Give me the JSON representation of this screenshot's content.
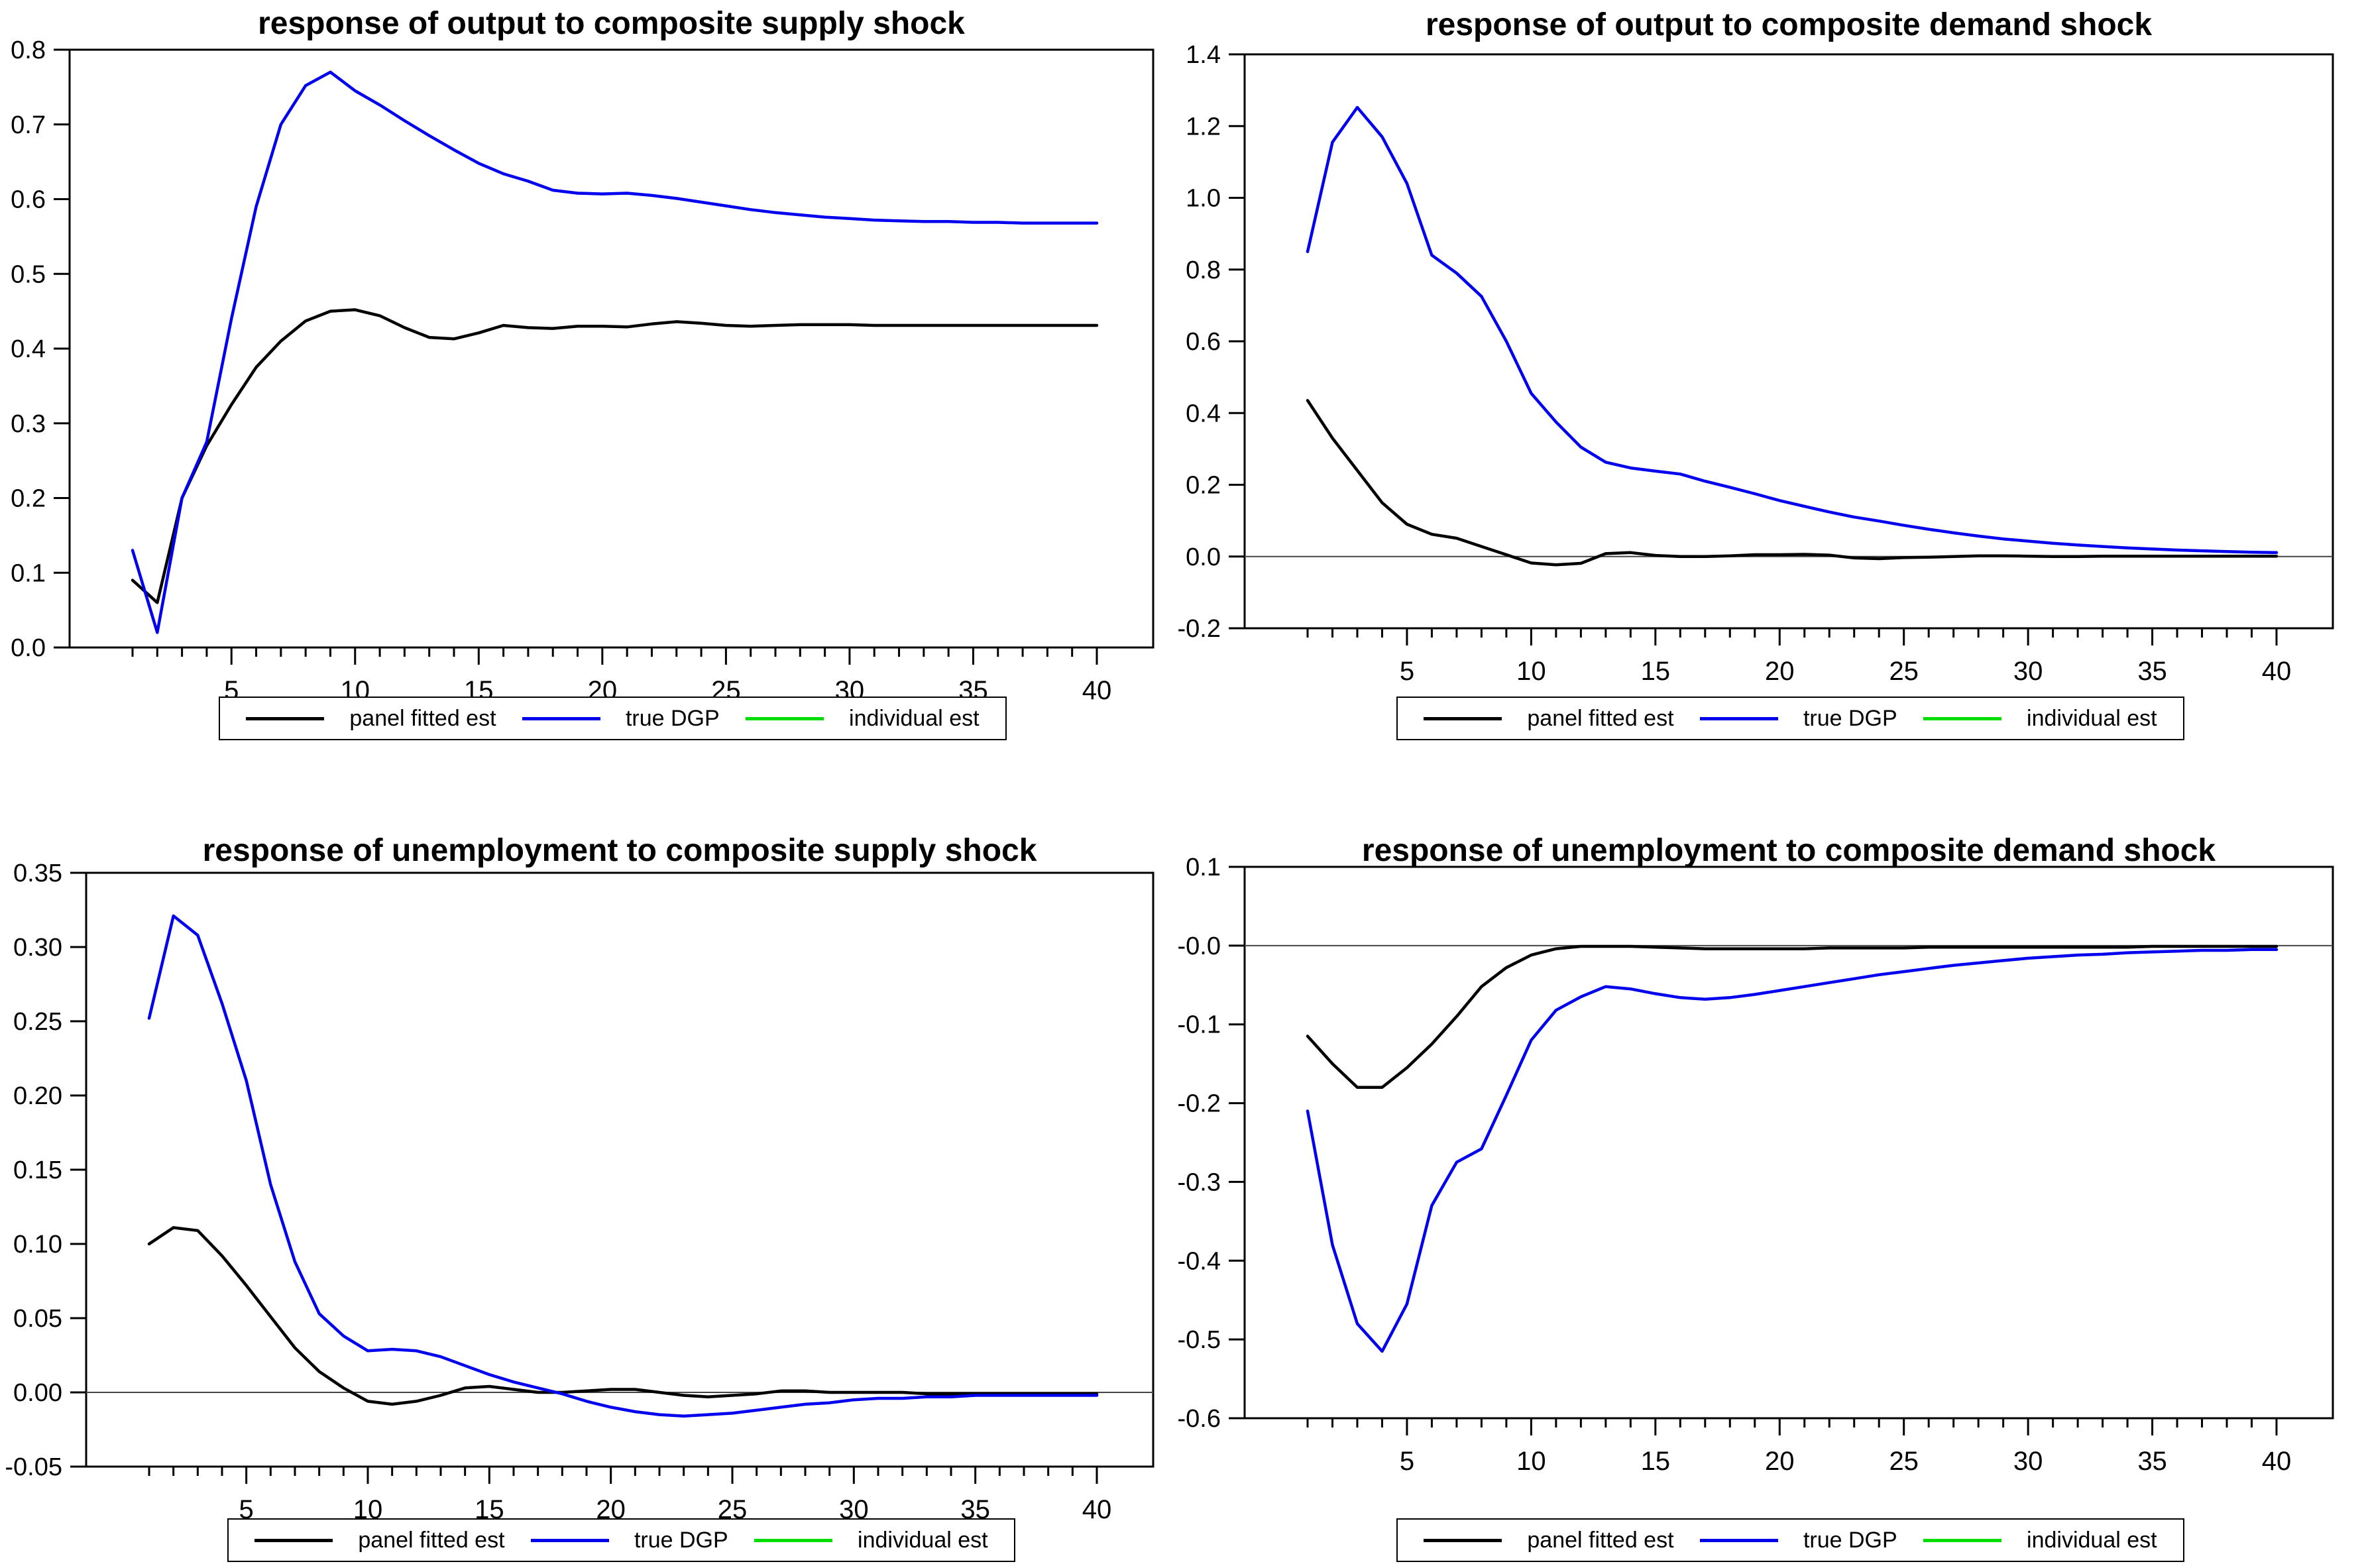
{
  "colors": {
    "panel_fitted_est": "#000000",
    "true_dgp": "#0000EE",
    "individual_est": "#00DD00",
    "frame": "#000000",
    "zero_line": "#444444",
    "background": "#FFFFFF"
  },
  "legend": {
    "items": [
      {
        "label": "panel fitted est",
        "color": "#000000"
      },
      {
        "label": "true DGP",
        "color": "#0000EE"
      },
      {
        "label": "individual est",
        "color": "#00DD00"
      }
    ]
  },
  "chart_data": [
    {
      "type": "line",
      "title": "response of output to composite supply shock",
      "xlabel": "",
      "ylabel": "",
      "x_range": [
        1,
        40
      ],
      "x_ticks": [
        5,
        10,
        15,
        20,
        25,
        30,
        35,
        40
      ],
      "x_minor_tick_every": 1,
      "ylim": [
        0.0,
        0.8
      ],
      "ytick_values": [
        0.8,
        0.7,
        0.6,
        0.5,
        0.4,
        0.3,
        0.2,
        0.1,
        0.0
      ],
      "ytick_labels": [
        "0.8",
        "0.7",
        "0.6",
        "0.5",
        "0.4",
        "0.3",
        "0.2",
        "0.1",
        "0.0"
      ],
      "grid": false,
      "zero_line": false,
      "legend_position": "bottom",
      "series": [
        {
          "name": "panel fitted est",
          "color": "#000000",
          "values": [
            0.09,
            0.06,
            0.2,
            0.27,
            0.325,
            0.375,
            0.41,
            0.437,
            0.45,
            0.452,
            0.444,
            0.428,
            0.415,
            0.413,
            0.421,
            0.431,
            0.428,
            0.427,
            0.43,
            0.43,
            0.429,
            0.433,
            0.436,
            0.434,
            0.431,
            0.43,
            0.431,
            0.432,
            0.432,
            0.432,
            0.431,
            0.431,
            0.431,
            0.431,
            0.431,
            0.431,
            0.431,
            0.431,
            0.431,
            0.431
          ]
        },
        {
          "name": "true DGP",
          "color": "#0000EE",
          "values": [
            0.13,
            0.02,
            0.2,
            0.275,
            0.44,
            0.59,
            0.7,
            0.752,
            0.77,
            0.745,
            0.726,
            0.705,
            0.685,
            0.666,
            0.648,
            0.634,
            0.624,
            0.612,
            0.608,
            0.607,
            0.608,
            0.605,
            0.601,
            0.596,
            0.591,
            0.586,
            0.582,
            0.579,
            0.576,
            0.574,
            0.572,
            0.571,
            0.57,
            0.57,
            0.569,
            0.569,
            0.568,
            0.568,
            0.568,
            0.568
          ]
        }
      ]
    },
    {
      "type": "line",
      "title": "response of output to composite demand shock",
      "xlabel": "",
      "ylabel": "",
      "x_range": [
        1,
        40
      ],
      "x_ticks": [
        5,
        10,
        15,
        20,
        25,
        30,
        35,
        40
      ],
      "x_minor_tick_every": 1,
      "ylim": [
        -0.2,
        1.4
      ],
      "ytick_values": [
        1.4,
        1.2,
        1.0,
        0.8,
        0.6,
        0.4,
        0.2,
        0.0,
        -0.2
      ],
      "ytick_labels": [
        "1.4",
        "1.2",
        "1.0",
        "0.8",
        "0.6",
        "0.4",
        "0.2",
        "0.0",
        "-0.2"
      ],
      "grid": false,
      "zero_line": true,
      "legend_position": "bottom",
      "series": [
        {
          "name": "panel fitted est",
          "color": "#000000",
          "values": [
            0.435,
            0.33,
            0.24,
            0.15,
            0.09,
            0.062,
            0.051,
            0.028,
            0.005,
            -0.018,
            -0.023,
            -0.019,
            0.008,
            0.011,
            0.003,
            0.0,
            0.0,
            0.002,
            0.005,
            0.005,
            0.006,
            0.004,
            -0.004,
            -0.006,
            -0.003,
            -0.002,
            0.0,
            0.002,
            0.002,
            0.001,
            0.0,
            0.0,
            0.001,
            0.001,
            0.001,
            0.001,
            0.001,
            0.001,
            0.001,
            0.001
          ]
        },
        {
          "name": "true DGP",
          "color": "#0000EE",
          "values": [
            0.85,
            1.155,
            1.252,
            1.17,
            1.04,
            0.84,
            0.79,
            0.725,
            0.6,
            0.455,
            0.375,
            0.305,
            0.263,
            0.247,
            0.238,
            0.23,
            0.21,
            0.193,
            0.175,
            0.156,
            0.14,
            0.124,
            0.11,
            0.099,
            0.087,
            0.076,
            0.066,
            0.057,
            0.049,
            0.043,
            0.037,
            0.032,
            0.028,
            0.024,
            0.021,
            0.018,
            0.016,
            0.014,
            0.012,
            0.011
          ]
        }
      ]
    },
    {
      "type": "line",
      "title": "response of unemployment to composite supply shock",
      "xlabel": "",
      "ylabel": "",
      "x_range": [
        1,
        40
      ],
      "x_ticks": [
        5,
        10,
        15,
        20,
        25,
        30,
        35,
        40
      ],
      "x_minor_tick_every": 1,
      "ylim": [
        -0.05,
        0.35
      ],
      "ytick_values": [
        0.35,
        0.3,
        0.25,
        0.2,
        0.15,
        0.1,
        0.05,
        0.0,
        -0.05
      ],
      "ytick_labels": [
        "0.35",
        "0.30",
        "0.25",
        "0.20",
        "0.15",
        "0.10",
        "0.05",
        "0.00",
        "-0.05"
      ],
      "grid": false,
      "zero_line": true,
      "legend_position": "bottom",
      "series": [
        {
          "name": "panel fitted est",
          "color": "#000000",
          "values": [
            0.1,
            0.111,
            0.109,
            0.092,
            0.072,
            0.051,
            0.03,
            0.014,
            0.003,
            -0.006,
            -0.008,
            -0.006,
            -0.002,
            0.003,
            0.004,
            0.002,
            0.0,
            0.0,
            0.001,
            0.002,
            0.002,
            0.0,
            -0.002,
            -0.003,
            -0.002,
            -0.001,
            0.001,
            0.001,
            0.0,
            0.0,
            0.0,
            0.0,
            -0.001,
            -0.001,
            -0.001,
            -0.001,
            -0.001,
            -0.001,
            -0.001,
            -0.001
          ]
        },
        {
          "name": "true DGP",
          "color": "#0000EE",
          "values": [
            0.252,
            0.321,
            0.308,
            0.262,
            0.21,
            0.14,
            0.088,
            0.053,
            0.038,
            0.028,
            0.029,
            0.028,
            0.024,
            0.018,
            0.012,
            0.007,
            0.003,
            -0.001,
            -0.006,
            -0.01,
            -0.013,
            -0.015,
            -0.016,
            -0.015,
            -0.014,
            -0.012,
            -0.01,
            -0.008,
            -0.007,
            -0.005,
            -0.004,
            -0.004,
            -0.003,
            -0.003,
            -0.002,
            -0.002,
            -0.002,
            -0.002,
            -0.002,
            -0.002
          ]
        }
      ]
    },
    {
      "type": "line",
      "title": "response of unemployment to composite demand shock",
      "xlabel": "",
      "ylabel": "",
      "x_range": [
        1,
        40
      ],
      "x_ticks": [
        5,
        10,
        15,
        20,
        25,
        30,
        35,
        40
      ],
      "x_minor_tick_every": 1,
      "ylim": [
        -0.6,
        0.1
      ],
      "ytick_values": [
        0.1,
        0.0,
        -0.1,
        -0.2,
        -0.3,
        -0.4,
        -0.5,
        -0.6
      ],
      "ytick_labels": [
        "0.1",
        "-0.0",
        "-0.1",
        "-0.2",
        "-0.3",
        "-0.4",
        "-0.5",
        "-0.6"
      ],
      "grid": false,
      "zero_line": true,
      "legend_position": "bottom",
      "series": [
        {
          "name": "panel fitted est",
          "color": "#000000",
          "values": [
            -0.115,
            -0.15,
            -0.18,
            -0.18,
            -0.155,
            -0.125,
            -0.09,
            -0.052,
            -0.028,
            -0.012,
            -0.004,
            -0.001,
            -0.001,
            -0.001,
            -0.002,
            -0.003,
            -0.004,
            -0.004,
            -0.004,
            -0.004,
            -0.004,
            -0.003,
            -0.003,
            -0.003,
            -0.003,
            -0.002,
            -0.002,
            -0.002,
            -0.002,
            -0.002,
            -0.002,
            -0.002,
            -0.002,
            -0.002,
            -0.001,
            -0.001,
            -0.001,
            -0.001,
            -0.001,
            -0.001
          ]
        },
        {
          "name": "true DGP",
          "color": "#0000EE",
          "values": [
            -0.21,
            -0.38,
            -0.48,
            -0.515,
            -0.455,
            -0.33,
            -0.275,
            -0.258,
            -0.19,
            -0.12,
            -0.082,
            -0.065,
            -0.052,
            -0.055,
            -0.061,
            -0.066,
            -0.068,
            -0.066,
            -0.062,
            -0.057,
            -0.052,
            -0.047,
            -0.042,
            -0.037,
            -0.033,
            -0.029,
            -0.025,
            -0.022,
            -0.019,
            -0.016,
            -0.014,
            -0.012,
            -0.011,
            -0.009,
            -0.008,
            -0.007,
            -0.006,
            -0.006,
            -0.005,
            -0.005
          ]
        }
      ]
    }
  ]
}
